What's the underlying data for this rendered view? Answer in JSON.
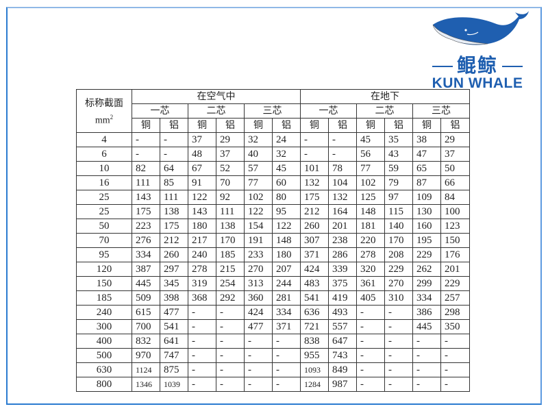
{
  "logo": {
    "cn": "鲲鲸",
    "en": "KUN WHALE",
    "color": "#1f5fb0"
  },
  "frame_color": "#2a7bd0",
  "table": {
    "header": {
      "size_label": "标称截面",
      "size_unit": "mm",
      "size_unit_sup": "2",
      "groups": [
        "在空气中",
        "在地下"
      ],
      "cores": [
        "一芯",
        "二芯",
        "三芯",
        "一芯",
        "二芯",
        "三芯"
      ],
      "materials": [
        "铜",
        "铝",
        "铜",
        "铝",
        "铜",
        "铝",
        "铜",
        "铝",
        "铜",
        "铝",
        "铜",
        "铝"
      ]
    },
    "rows": [
      [
        "4",
        "-",
        "-",
        "37",
        "29",
        "32",
        "24",
        "-",
        "-",
        "45",
        "35",
        "38",
        "29"
      ],
      [
        "6",
        "-",
        "-",
        "48",
        "37",
        "40",
        "32",
        "-",
        "-",
        "56",
        "43",
        "47",
        "37"
      ],
      [
        "10",
        "82",
        "64",
        "67",
        "52",
        "57",
        "45",
        "101",
        "78",
        "77",
        "59",
        "65",
        "50"
      ],
      [
        "16",
        "111",
        "85",
        "91",
        "70",
        "77",
        "60",
        "132",
        "104",
        "102",
        "79",
        "87",
        "66"
      ],
      [
        "25",
        "143",
        "111",
        "122",
        "92",
        "102",
        "80",
        "175",
        "132",
        "125",
        "97",
        "109",
        "84"
      ],
      [
        "25",
        "175",
        "138",
        "143",
        "111",
        "122",
        "95",
        "212",
        "164",
        "148",
        "115",
        "130",
        "100"
      ],
      [
        "50",
        "223",
        "175",
        "180",
        "138",
        "154",
        "122",
        "260",
        "201",
        "181",
        "140",
        "160",
        "123"
      ],
      [
        "70",
        "276",
        "212",
        "217",
        "170",
        "191",
        "148",
        "307",
        "238",
        "220",
        "170",
        "195",
        "150"
      ],
      [
        "95",
        "334",
        "260",
        "240",
        "185",
        "233",
        "180",
        "371",
        "286",
        "278",
        "208",
        "229",
        "176"
      ],
      [
        "120",
        "387",
        "297",
        "278",
        "215",
        "270",
        "207",
        "424",
        "339",
        "320",
        "229",
        "262",
        "201"
      ],
      [
        "150",
        "445",
        "345",
        "319",
        "254",
        "313",
        "244",
        "483",
        "375",
        "361",
        "270",
        "299",
        "229"
      ],
      [
        "185",
        "509",
        "398",
        "368",
        "292",
        "360",
        "281",
        "541",
        "419",
        "405",
        "310",
        "334",
        "257"
      ],
      [
        "240",
        "615",
        "477",
        "-",
        "-",
        "424",
        "334",
        "636",
        "493",
        "-",
        "-",
        "386",
        "298"
      ],
      [
        "300",
        "700",
        "541",
        "-",
        "-",
        "477",
        "371",
        "721",
        "557",
        "-",
        "-",
        "445",
        "350"
      ],
      [
        "400",
        "832",
        "641",
        "-",
        "-",
        "-",
        "-",
        "838",
        "647",
        "-",
        "-",
        "-",
        "-"
      ],
      [
        "500",
        "970",
        "747",
        "-",
        "-",
        "-",
        "-",
        "955",
        "743",
        "-",
        "-",
        "-",
        "-"
      ],
      [
        "630",
        "1124",
        "875",
        "-",
        "-",
        "-",
        "-",
        "1093",
        "849",
        "-",
        "-",
        "-",
        "-"
      ],
      [
        "800",
        "1346",
        "1039",
        "-",
        "-",
        "-",
        "-",
        "1284",
        "987",
        "-",
        "-",
        "-",
        "-"
      ]
    ]
  }
}
